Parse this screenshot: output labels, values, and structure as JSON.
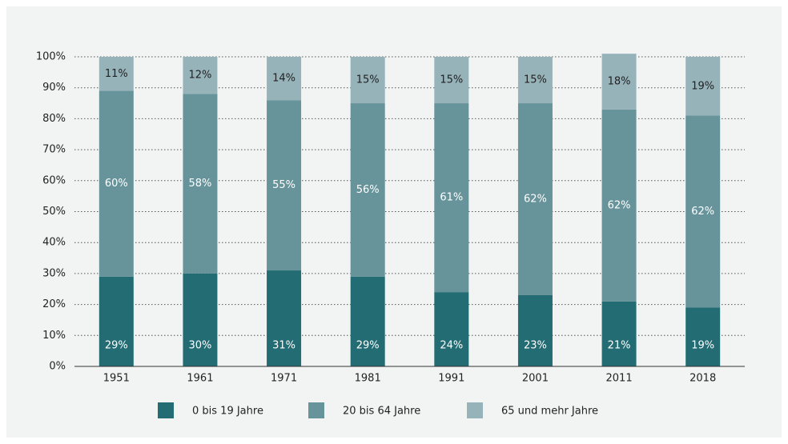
{
  "chart_data": {
    "type": "stacked_bar",
    "categories": [
      "1951",
      "1961",
      "1971",
      "1981",
      "1991",
      "2001",
      "2011",
      "2018"
    ],
    "series": [
      {
        "name": "0 bis 19 Jahre",
        "color": "#236c73",
        "values": [
          29,
          30,
          31,
          29,
          24,
          23,
          21,
          19
        ],
        "value_labels": [
          "29%",
          "30%",
          "31%",
          "29%",
          "24%",
          "23%",
          "21%",
          "19%"
        ]
      },
      {
        "name": "20 bis 64 Jahre",
        "color": "#67939a",
        "values": [
          60,
          58,
          55,
          56,
          61,
          62,
          62,
          62
        ],
        "value_labels": [
          "60%",
          "58%",
          "55%",
          "56%",
          "61%",
          "62%",
          "62%",
          "62%"
        ]
      },
      {
        "name": "65 und mehr Jahre",
        "color": "#97b3ba",
        "values": [
          11,
          12,
          14,
          15,
          15,
          15,
          18,
          19
        ],
        "value_labels": [
          "11%",
          "12%",
          "14%",
          "15%",
          "15%",
          "15%",
          "18%",
          "19%"
        ]
      }
    ],
    "ylim": [
      0,
      100
    ],
    "yticks": [
      {
        "value": 0,
        "label": "0%"
      },
      {
        "value": 10,
        "label": "10%"
      },
      {
        "value": 20,
        "label": "20%"
      },
      {
        "value": 30,
        "label": "30%"
      },
      {
        "value": 40,
        "label": "40%"
      },
      {
        "value": 50,
        "label": "50%"
      },
      {
        "value": 60,
        "label": "60%"
      },
      {
        "value": 70,
        "label": "70%"
      },
      {
        "value": 80,
        "label": "80%"
      },
      {
        "value": 90,
        "label": "90%"
      },
      {
        "value": 100,
        "label": "100%"
      }
    ],
    "grid": true,
    "legend": "bottom"
  }
}
